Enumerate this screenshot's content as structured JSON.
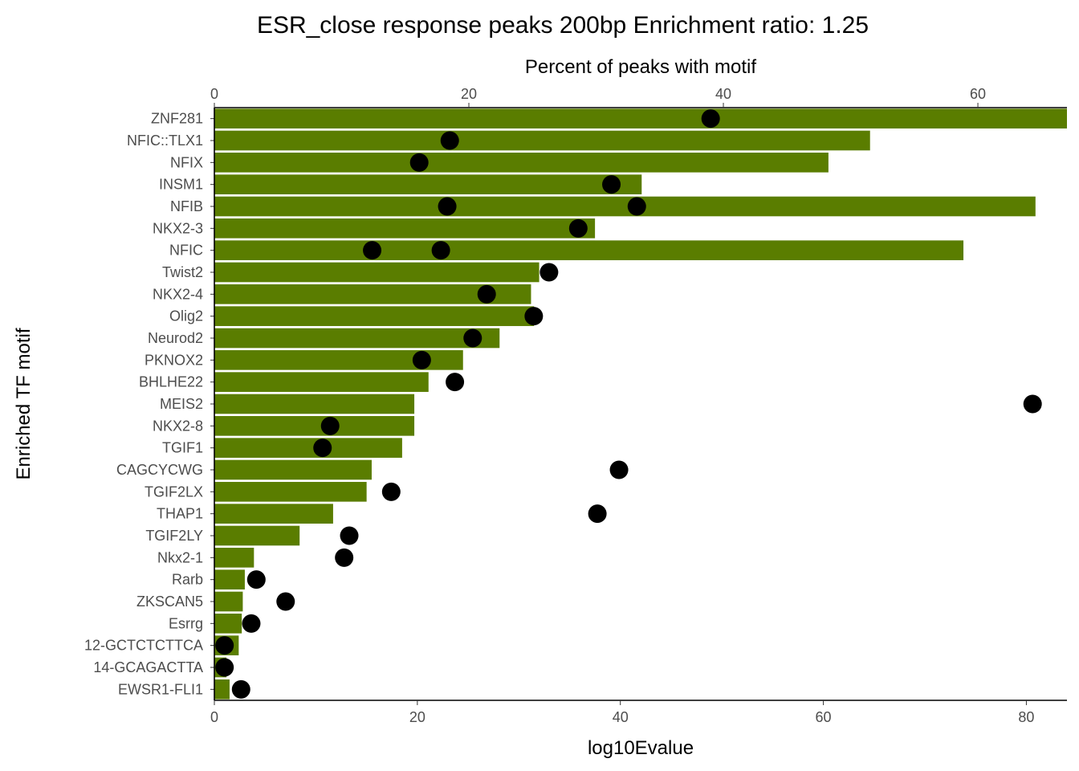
{
  "chart_data": {
    "type": "bar",
    "orientation": "horizontal",
    "title": "ESR_close response peaks 200bp Enrichment ratio: 1.25",
    "ylabel": "Enriched TF motif",
    "xlabel_bottom": "log10Evalue",
    "xlabel_top": "Percent of peaks with motif",
    "bar_color": "#5a7d00",
    "point_color": "#000000",
    "bottom_axis": {
      "range": [
        0,
        84
      ],
      "ticks": [
        0,
        20,
        40,
        60,
        80
      ]
    },
    "top_axis": {
      "range": [
        0,
        67
      ],
      "ticks": [
        0,
        20,
        40,
        60
      ]
    },
    "categories": [
      "ZNF281",
      "NFIC::TLX1",
      "NFIX",
      "INSM1",
      "NFIB",
      "NKX2-3",
      "NFIC",
      "Twist2",
      "NKX2-4",
      "Olig2",
      "Neurod2",
      "PKNOX2",
      "BHLHE22",
      "MEIS2",
      "NKX2-8",
      "TGIF1",
      "CAGCYCWG",
      "TGIF2LX",
      "THAP1",
      "TGIF2LY",
      "Nkx2-1",
      "Rarb",
      "ZKSCAN5",
      "Esrrg",
      "12-GCTCTCTTCA",
      "14-GCAGACTTA",
      "EWSR1-FLI1"
    ],
    "series": [
      {
        "name": "log10Evalue",
        "kind": "bar",
        "values": [
          84.0,
          64.6,
          60.5,
          42.1,
          80.9,
          37.5,
          73.8,
          32.0,
          31.2,
          31.5,
          28.1,
          24.5,
          21.1,
          19.7,
          19.7,
          18.5,
          15.5,
          15.0,
          11.7,
          8.4,
          3.9,
          3.0,
          2.8,
          2.7,
          2.4,
          1.2,
          1.5
        ]
      },
      {
        "name": "Percent of peaks with motif",
        "kind": "point",
        "values": [
          [
            39.0
          ],
          [
            18.5
          ],
          [
            16.1
          ],
          [
            31.2
          ],
          [
            18.3,
            33.2
          ],
          [
            28.6
          ],
          [
            12.4,
            17.8
          ],
          [
            26.3
          ],
          [
            21.4
          ],
          [
            25.1
          ],
          [
            20.3
          ],
          [
            16.3
          ],
          [
            18.9
          ],
          [
            64.3
          ],
          [
            9.1
          ],
          [
            8.5
          ],
          [
            31.8
          ],
          [
            13.9
          ],
          [
            30.1
          ],
          [
            10.6
          ],
          [
            10.2
          ],
          [
            3.3
          ],
          [
            5.6
          ],
          [
            2.9
          ],
          [
            0.8
          ],
          [
            0.8
          ],
          [
            2.1
          ]
        ]
      }
    ]
  }
}
